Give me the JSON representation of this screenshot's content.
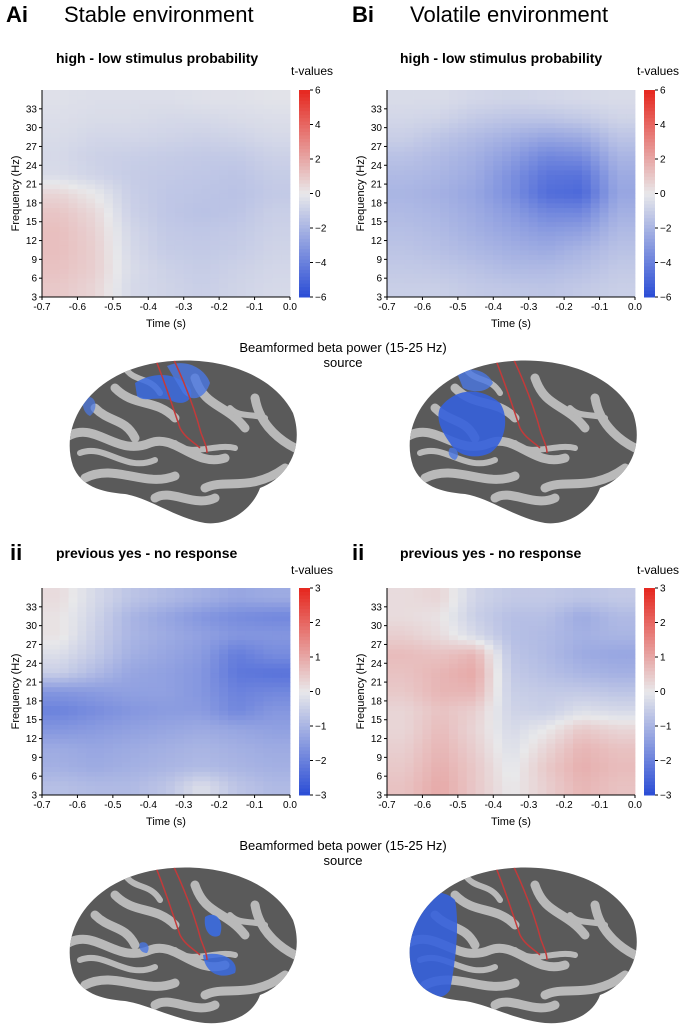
{
  "header": {
    "left_letter": "Ai",
    "left_title": "Stable environment",
    "right_letter": "Bi",
    "right_title": "Volatile environment",
    "row2_left_letter": "ii",
    "row2_right_letter": "ii"
  },
  "source_label": {
    "line1": "Beamformed beta power (15-25 Hz)",
    "line2": "source"
  },
  "colors": {
    "cmap_low": "#2d4fd6",
    "cmap_mid": "#e8e8ea",
    "cmap_high": "#e62a22",
    "cortex_dark": "#5a5a5a",
    "cortex_light": "#b9b9b9",
    "sulcus_line": "#c23a3a",
    "cluster_outline": "#ffffff"
  },
  "chart_data": [
    {
      "id": "Ai-tf",
      "type": "heatmap",
      "title": "high - low stimulus probability",
      "xlabel": "Time (s)",
      "ylabel": "Frequency (Hz)",
      "xlim": [
        -0.7,
        0.0
      ],
      "ylim": [
        3,
        36
      ],
      "xticks": [
        "-0.7",
        "-0.6",
        "-0.5",
        "-0.4",
        "-0.3",
        "-0.2",
        "-0.1",
        "0.0"
      ],
      "yticks": [
        "3",
        "6",
        "9",
        "12",
        "15",
        "18",
        "21",
        "24",
        "27",
        "30",
        "33"
      ],
      "x": [
        -0.65,
        -0.55,
        -0.45,
        -0.35,
        -0.25,
        -0.15,
        -0.05
      ],
      "y": [
        4.5,
        7.5,
        10.5,
        13.5,
        16.5,
        19.5,
        22.5,
        25.5,
        28.5,
        31.5,
        34.5
      ],
      "z": [
        [
          1.0,
          0.6,
          -0.6,
          -0.8,
          -1.0,
          -0.8,
          -0.6
        ],
        [
          1.2,
          0.8,
          -0.5,
          -0.9,
          -1.1,
          -0.9,
          -0.7
        ],
        [
          1.3,
          0.8,
          -0.6,
          -1.1,
          -1.2,
          -1.1,
          -0.8
        ],
        [
          1.3,
          0.7,
          -0.7,
          -1.2,
          -1.3,
          -1.2,
          -0.9
        ],
        [
          1.1,
          0.5,
          -0.9,
          -1.3,
          -1.5,
          -1.4,
          -1.0
        ],
        [
          0.6,
          0.0,
          -1.0,
          -1.3,
          -1.4,
          -1.5,
          -1.2
        ],
        [
          -0.5,
          -0.8,
          -1.1,
          -1.2,
          -1.3,
          -1.4,
          -1.1
        ],
        [
          -0.6,
          -0.9,
          -1.0,
          -1.1,
          -1.2,
          -1.2,
          -0.9
        ],
        [
          -0.5,
          -0.7,
          -0.7,
          -0.8,
          -0.9,
          -0.8,
          -0.6
        ],
        [
          -0.4,
          -0.5,
          -0.5,
          -0.6,
          -0.6,
          -0.5,
          -0.4
        ],
        [
          -0.3,
          -0.4,
          -0.4,
          -0.4,
          -0.3,
          -0.3,
          -0.2
        ]
      ],
      "colorbar": {
        "title": "t-values",
        "range": [
          -6,
          6
        ],
        "ticks": [
          "-6",
          "-4",
          "-2",
          "0",
          "2",
          "4",
          "6"
        ]
      }
    },
    {
      "id": "Bi-tf",
      "type": "heatmap",
      "title": "high - low stimulus probability",
      "xlabel": "Time (s)",
      "ylabel": "Frequency (Hz)",
      "xlim": [
        -0.7,
        0.0
      ],
      "ylim": [
        3,
        36
      ],
      "xticks": [
        "-0.7",
        "-0.6",
        "-0.5",
        "-0.4",
        "-0.3",
        "-0.2",
        "-0.1",
        "0.0"
      ],
      "yticks": [
        "3",
        "6",
        "9",
        "12",
        "15",
        "18",
        "21",
        "24",
        "27",
        "30",
        "33"
      ],
      "x": [
        -0.65,
        -0.55,
        -0.45,
        -0.35,
        -0.25,
        -0.15,
        -0.05
      ],
      "y": [
        4.5,
        7.5,
        10.5,
        13.5,
        16.5,
        19.5,
        22.5,
        25.5,
        28.5,
        31.5,
        34.5
      ],
      "z": [
        [
          -1.0,
          -1.0,
          -1.2,
          -1.3,
          -1.4,
          -1.2,
          -1.0
        ],
        [
          -1.2,
          -1.3,
          -1.5,
          -1.8,
          -1.8,
          -1.6,
          -1.2
        ],
        [
          -1.4,
          -1.6,
          -1.9,
          -2.2,
          -2.4,
          -2.0,
          -1.5
        ],
        [
          -1.6,
          -1.8,
          -2.2,
          -2.6,
          -3.0,
          -2.8,
          -1.8
        ],
        [
          -1.8,
          -2.0,
          -2.4,
          -3.0,
          -3.8,
          -3.8,
          -2.2
        ],
        [
          -2.0,
          -2.2,
          -2.6,
          -3.5,
          -4.8,
          -5.0,
          -2.6
        ],
        [
          -1.8,
          -2.0,
          -2.4,
          -3.4,
          -4.5,
          -4.6,
          -2.4
        ],
        [
          -1.5,
          -1.8,
          -2.2,
          -2.9,
          -3.8,
          -3.6,
          -2.0
        ],
        [
          -1.0,
          -1.4,
          -1.8,
          -2.2,
          -2.6,
          -2.4,
          -1.4
        ],
        [
          -0.7,
          -0.8,
          -1.2,
          -1.4,
          -1.4,
          -1.2,
          -0.8
        ],
        [
          -0.5,
          -0.5,
          -0.7,
          -0.8,
          -0.7,
          -0.6,
          -0.5
        ]
      ],
      "colorbar": {
        "title": "t-values",
        "range": [
          -6,
          6
        ],
        "ticks": [
          "-6",
          "-4",
          "-2",
          "0",
          "2",
          "4",
          "6"
        ]
      }
    },
    {
      "id": "Aii-tf",
      "type": "heatmap",
      "title": "previous yes - no response",
      "xlabel": "Time (s)",
      "ylabel": "Frequency (Hz)",
      "xlim": [
        -0.7,
        0.0
      ],
      "ylim": [
        3,
        36
      ],
      "xticks": [
        "-0.7",
        "-0.6",
        "-0.5",
        "-0.4",
        "-0.3",
        "-0.2",
        "-0.1",
        "0.0"
      ],
      "yticks": [
        "3",
        "6",
        "9",
        "12",
        "15",
        "18",
        "21",
        "24",
        "27",
        "30",
        "33"
      ],
      "x": [
        -0.65,
        -0.55,
        -0.45,
        -0.35,
        -0.25,
        -0.15,
        -0.05
      ],
      "y": [
        4.5,
        7.5,
        10.5,
        13.5,
        16.5,
        19.5,
        22.5,
        25.5,
        28.5,
        31.5,
        34.5
      ],
      "z": [
        [
          -0.8,
          -0.9,
          -0.9,
          -0.7,
          -0.2,
          -0.7,
          -0.9
        ],
        [
          -1.1,
          -1.2,
          -1.1,
          -1.0,
          -0.9,
          -1.0,
          -1.1
        ],
        [
          -1.2,
          -1.3,
          -1.2,
          -1.1,
          -1.0,
          -1.1,
          -1.2
        ],
        [
          -1.6,
          -1.5,
          -1.4,
          -1.3,
          -1.2,
          -1.3,
          -1.4
        ],
        [
          -2.0,
          -1.8,
          -1.6,
          -1.5,
          -1.5,
          -1.9,
          -1.6
        ],
        [
          -1.6,
          -1.5,
          -1.4,
          -1.4,
          -1.6,
          -2.0,
          -1.9
        ],
        [
          -0.5,
          -0.9,
          -1.3,
          -1.4,
          -1.6,
          -2.2,
          -2.3
        ],
        [
          -0.2,
          -0.6,
          -1.1,
          -1.3,
          -1.5,
          -2.1,
          -1.8
        ],
        [
          0.1,
          -0.5,
          -1.0,
          -1.2,
          -1.4,
          -1.6,
          -1.6
        ],
        [
          0.1,
          -0.4,
          -1.0,
          -1.3,
          -1.6,
          -1.8,
          -1.9
        ],
        [
          0.2,
          -0.3,
          -0.7,
          -0.9,
          -1.1,
          -1.3,
          -1.2
        ]
      ],
      "colorbar": {
        "title": "t-values",
        "range": [
          -3,
          3
        ],
        "ticks": [
          "-3",
          "-2",
          "-1",
          "0",
          "1",
          "2",
          "3"
        ]
      }
    },
    {
      "id": "Bii-tf",
      "type": "heatmap",
      "title": "previous yes - no response",
      "xlabel": "Time (s)",
      "ylabel": "Frequency (Hz)",
      "xlim": [
        -0.7,
        0.0
      ],
      "ylim": [
        3,
        36
      ],
      "xticks": [
        "-0.7",
        "-0.6",
        "-0.5",
        "-0.4",
        "-0.3",
        "-0.2",
        "-0.1",
        "0.0"
      ],
      "yticks": [
        "3",
        "6",
        "9",
        "12",
        "15",
        "18",
        "21",
        "24",
        "27",
        "30",
        "33"
      ],
      "x": [
        -0.65,
        -0.55,
        -0.45,
        -0.35,
        -0.25,
        -0.15,
        -0.05
      ],
      "y": [
        4.5,
        7.5,
        10.5,
        13.5,
        16.5,
        19.5,
        22.5,
        25.5,
        28.5,
        31.5,
        34.5
      ],
      "z": [
        [
          0.6,
          1.0,
          0.5,
          0.0,
          0.4,
          0.8,
          0.6
        ],
        [
          0.5,
          0.9,
          0.5,
          -0.1,
          0.5,
          0.9,
          0.7
        ],
        [
          0.4,
          0.8,
          0.4,
          -0.2,
          0.3,
          0.8,
          0.6
        ],
        [
          0.3,
          0.7,
          0.3,
          -0.3,
          0.0,
          0.5,
          0.3
        ],
        [
          0.3,
          0.6,
          0.4,
          -0.4,
          -0.5,
          -0.2,
          -0.3
        ],
        [
          0.5,
          0.8,
          0.8,
          -0.5,
          -0.6,
          -0.6,
          -0.7
        ],
        [
          0.6,
          0.8,
          1.0,
          -0.6,
          -0.8,
          -1.0,
          -1.1
        ],
        [
          0.7,
          0.6,
          0.8,
          -0.7,
          -0.9,
          -1.2,
          -1.3
        ],
        [
          0.4,
          0.2,
          -0.3,
          -0.8,
          -0.9,
          -1.1,
          -1.0
        ],
        [
          0.2,
          0.1,
          -0.5,
          -0.8,
          -0.8,
          -1.2,
          -0.9
        ],
        [
          0.2,
          0.3,
          -0.4,
          -0.6,
          -0.6,
          -0.7,
          -0.6
        ]
      ],
      "colorbar": {
        "title": "t-values",
        "range": [
          -3,
          3
        ],
        "ticks": [
          "-3",
          "-2",
          "-1",
          "0",
          "1",
          "2",
          "3"
        ]
      }
    }
  ]
}
